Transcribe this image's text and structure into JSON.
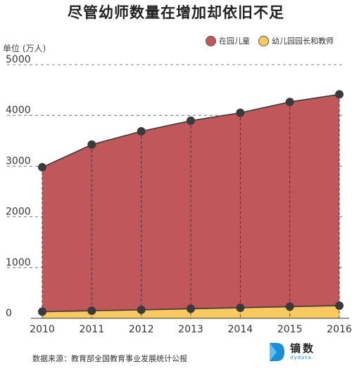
{
  "chart_data": {
    "type": "area",
    "title": "尽管幼师数量在增加却依旧不足",
    "ylabel": "单位 (万人)",
    "ylim": [
      0,
      5000
    ],
    "yticks": [
      0,
      1000,
      2000,
      3000,
      4000,
      5000
    ],
    "x": [
      "2010",
      "2011",
      "2012",
      "2013",
      "2014",
      "2015",
      "2016"
    ],
    "series": [
      {
        "name": "在园儿童",
        "values": [
          2977,
          3424,
          3686,
          3895,
          4051,
          4265,
          4414
        ],
        "color": "#c0575a"
      },
      {
        "name": "幼儿园园长和教师",
        "values": [
          131,
          149,
          167,
          188,
          208,
          230,
          250
        ],
        "color": "#f7c95e"
      }
    ],
    "legend_position": "top-right",
    "grid": "horizontal-dashed"
  },
  "footer": {
    "source": "数据来源：教育部全国教育事业发展统计公报",
    "brand_name": "镝数",
    "brand_sub": "dydata"
  }
}
